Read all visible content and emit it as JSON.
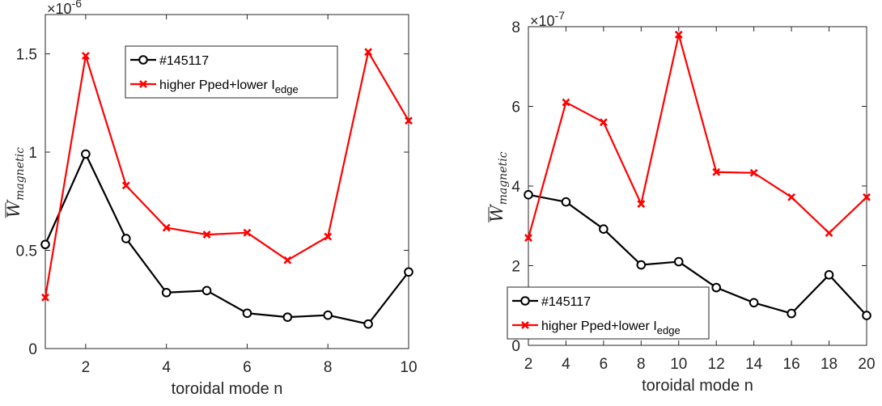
{
  "chart_data": [
    {
      "type": "line",
      "xlabel": "toroidal mode n",
      "ylabel_main": "W",
      "ylabel_sub": "magnetic",
      "exponent_label": "×10",
      "exponent_power": "-6",
      "xlim": [
        1,
        10
      ],
      "ylim": [
        0,
        1.7
      ],
      "xticks": [
        2,
        4,
        6,
        8,
        10
      ],
      "yticks": [
        0,
        0.5,
        1,
        1.5
      ],
      "ytick_labels": [
        "0",
        "0.5",
        "1",
        "1.5"
      ],
      "legend_position": "top-center",
      "x": [
        1,
        2,
        3,
        4,
        5,
        6,
        7,
        8,
        9,
        10
      ],
      "series": [
        {
          "name": "#145117",
          "color": "#000000",
          "marker": "circle",
          "values": [
            0.53,
            0.99,
            0.56,
            0.285,
            0.295,
            0.18,
            0.16,
            0.17,
            0.125,
            0.39
          ]
        },
        {
          "name": "higher Pped+lower I",
          "name_sub": "edge",
          "color": "#ff0000",
          "marker": "x",
          "values": [
            0.26,
            1.49,
            0.83,
            0.615,
            0.58,
            0.59,
            0.45,
            0.57,
            1.51,
            1.16
          ]
        }
      ]
    },
    {
      "type": "line",
      "xlabel": "toroidal mode n",
      "ylabel_main": "W",
      "ylabel_sub": "magnetic",
      "exponent_label": "×10",
      "exponent_power": "-7",
      "xlim": [
        2,
        20
      ],
      "ylim": [
        0,
        8
      ],
      "xticks": [
        2,
        4,
        6,
        8,
        10,
        12,
        14,
        16,
        18,
        20
      ],
      "yticks": [
        0,
        2,
        4,
        6,
        8
      ],
      "ytick_labels": [
        "0",
        "2",
        "4",
        "6",
        "8"
      ],
      "legend_position": "bottom-left",
      "x": [
        2,
        4,
        6,
        8,
        10,
        12,
        14,
        16,
        18,
        20
      ],
      "series": [
        {
          "name": "#145117",
          "color": "#000000",
          "marker": "circle",
          "values": [
            3.78,
            3.6,
            2.92,
            2.02,
            2.1,
            1.45,
            1.07,
            0.8,
            1.77,
            0.75
          ]
        },
        {
          "name": "higher Pped+lower I",
          "name_sub": "edge",
          "color": "#ff0000",
          "marker": "x",
          "values": [
            2.7,
            6.1,
            5.6,
            3.55,
            7.8,
            4.35,
            4.33,
            3.72,
            2.82,
            3.72
          ]
        }
      ]
    }
  ]
}
